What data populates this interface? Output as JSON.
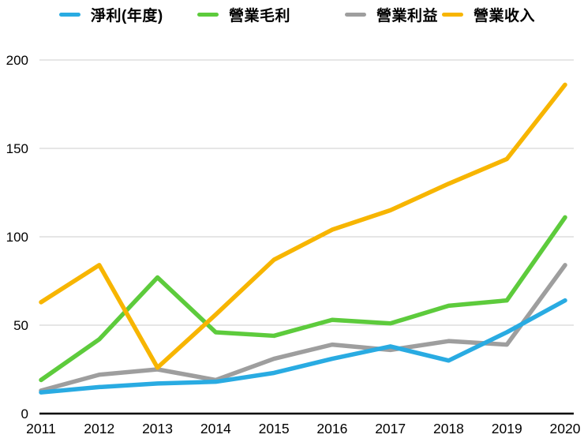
{
  "chart_data": {
    "type": "line",
    "title": "",
    "xlabel": "",
    "ylabel": "",
    "categories": [
      "2011",
      "2012",
      "2013",
      "2014",
      "2015",
      "2016",
      "2017",
      "2018",
      "2019",
      "2020"
    ],
    "series": [
      {
        "name": "淨利(年度)",
        "color": "#29ABE2",
        "values": [
          12,
          15,
          17,
          18,
          23,
          31,
          38,
          30,
          46,
          64
        ]
      },
      {
        "name": "營業毛利",
        "color": "#5DCB3C",
        "values": [
          19,
          42,
          77,
          46,
          44,
          53,
          51,
          61,
          64,
          111
        ]
      },
      {
        "name": "營業利益",
        "color": "#9E9E9E",
        "values": [
          13,
          22,
          25,
          19,
          31,
          39,
          36,
          41,
          39,
          84
        ]
      },
      {
        "name": "營業收入",
        "color": "#F7B500",
        "values": [
          63,
          84,
          26,
          56,
          87,
          104,
          115,
          130,
          144,
          186
        ]
      }
    ],
    "ylim": [
      0,
      200
    ],
    "yticks": [
      0,
      50,
      100,
      150,
      200
    ],
    "grid": true,
    "legend_position": "top",
    "colors": {
      "gridline": "#cccccc",
      "axis_line": "#000000",
      "tick_text": "#000000"
    }
  }
}
